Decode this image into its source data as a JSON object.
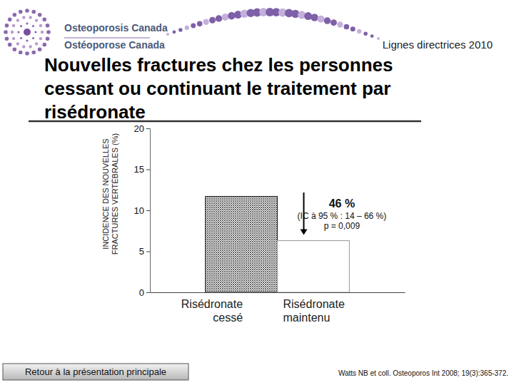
{
  "chart_data": {
    "type": "bar",
    "title": "Nouvelles fractures chez les personnes cessant ou continuant le traitement par risédronate",
    "y_label": "INCIDENCE DES NOUVELLES FRACTURES VERTÉBRALES (%)",
    "categories": [
      "Risédronate cessé",
      "Risédronate maintenu"
    ],
    "values": [
      11.7,
      6.3
    ],
    "colors": [
      "#555555",
      "#ffffff"
    ],
    "ylim": [
      0,
      20
    ],
    "yticks": [
      0,
      5,
      10,
      15,
      20
    ],
    "grid": false,
    "annotation": [
      "46 %",
      "(IC à 95 % : 14 – 66 %)",
      "p = 0,009"
    ]
  },
  "page": {
    "logo": [
      "Osteoporosis Canada",
      "Ostéoporose Canada"
    ],
    "guideline": "Lignes directrices 2010",
    "button": "Retour à la présentation principale",
    "source": "Watts NB et coll. Osteoporos Int 2008; 19(3):365-372."
  }
}
